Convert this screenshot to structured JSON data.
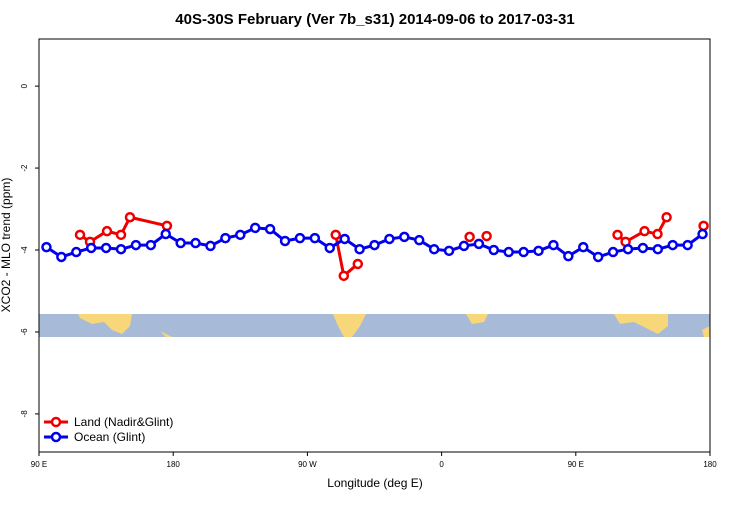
{
  "chart_data": {
    "type": "line",
    "title": "40S-30S February (Ver 7b_s31)   2014-09-06 to 2017-03-31",
    "x_label": "Longitude (deg E)",
    "y_label": "XCO2 - MLO trend (ppm)",
    "xlim": [
      90,
      540
    ],
    "ylim": [
      -8.93,
      1.15
    ],
    "xticks": [
      {
        "value": 90,
        "label": "90 E"
      },
      180,
      {
        "value": 270,
        "label": "90 W"
      },
      {
        "value": 360,
        "label": "0"
      },
      {
        "value": 450,
        "label": "90 E"
      },
      {
        "value": 540,
        "label": "180"
      }
    ],
    "yticks": [
      0,
      -2,
      -4,
      -6,
      -8
    ],
    "legend": "bottom-left",
    "series": [
      {
        "name": "Land (Nadir&Glint)",
        "color": "#ee0000",
        "x": [
          117.5,
          124.2,
          135.6,
          145.0,
          151.0,
          175.8,
          null,
          289.0,
          294.4,
          303.8,
          null,
          378.8,
          null,
          390.2,
          null,
          478.0,
          483.4,
          496.1,
          504.8,
          510.9,
          null,
          535.7
        ],
        "values": [
          -3.63,
          -3.8,
          -3.54,
          -3.63,
          -3.2,
          -3.41,
          null,
          -3.63,
          -4.63,
          -4.34,
          null,
          -3.68,
          null,
          -3.66,
          null,
          -3.63,
          -3.8,
          -3.54,
          -3.61,
          -3.2,
          null,
          -3.41
        ]
      },
      {
        "name": "Ocean (Glint)",
        "color": "#0000ee",
        "x": [
          95,
          105,
          115,
          125,
          135,
          145,
          155,
          165,
          175,
          185,
          195,
          205,
          215,
          225,
          235,
          245,
          255,
          265,
          275,
          285,
          295,
          305,
          315,
          325,
          335,
          345,
          355,
          365,
          375,
          385,
          395,
          405,
          415,
          425,
          435,
          445,
          455,
          465,
          475,
          485,
          495,
          505,
          515,
          525,
          535
        ],
        "values": [
          -3.93,
          -4.17,
          -4.05,
          -3.95,
          -3.95,
          -3.98,
          -3.88,
          -3.88,
          -3.61,
          -3.83,
          -3.83,
          -3.9,
          -3.71,
          -3.63,
          -3.46,
          -3.49,
          -3.78,
          -3.71,
          -3.71,
          -3.95,
          -3.73,
          -3.98,
          -3.88,
          -3.73,
          -3.68,
          -3.76,
          -3.98,
          -4.02,
          -3.9,
          -3.85,
          -4.0,
          -4.05,
          -4.05,
          -4.02,
          -3.88,
          -4.15,
          -3.93,
          -4.17,
          -4.05,
          -3.98,
          -3.95,
          -3.98,
          -3.88,
          -3.88,
          -3.61
        ]
      }
    ]
  }
}
